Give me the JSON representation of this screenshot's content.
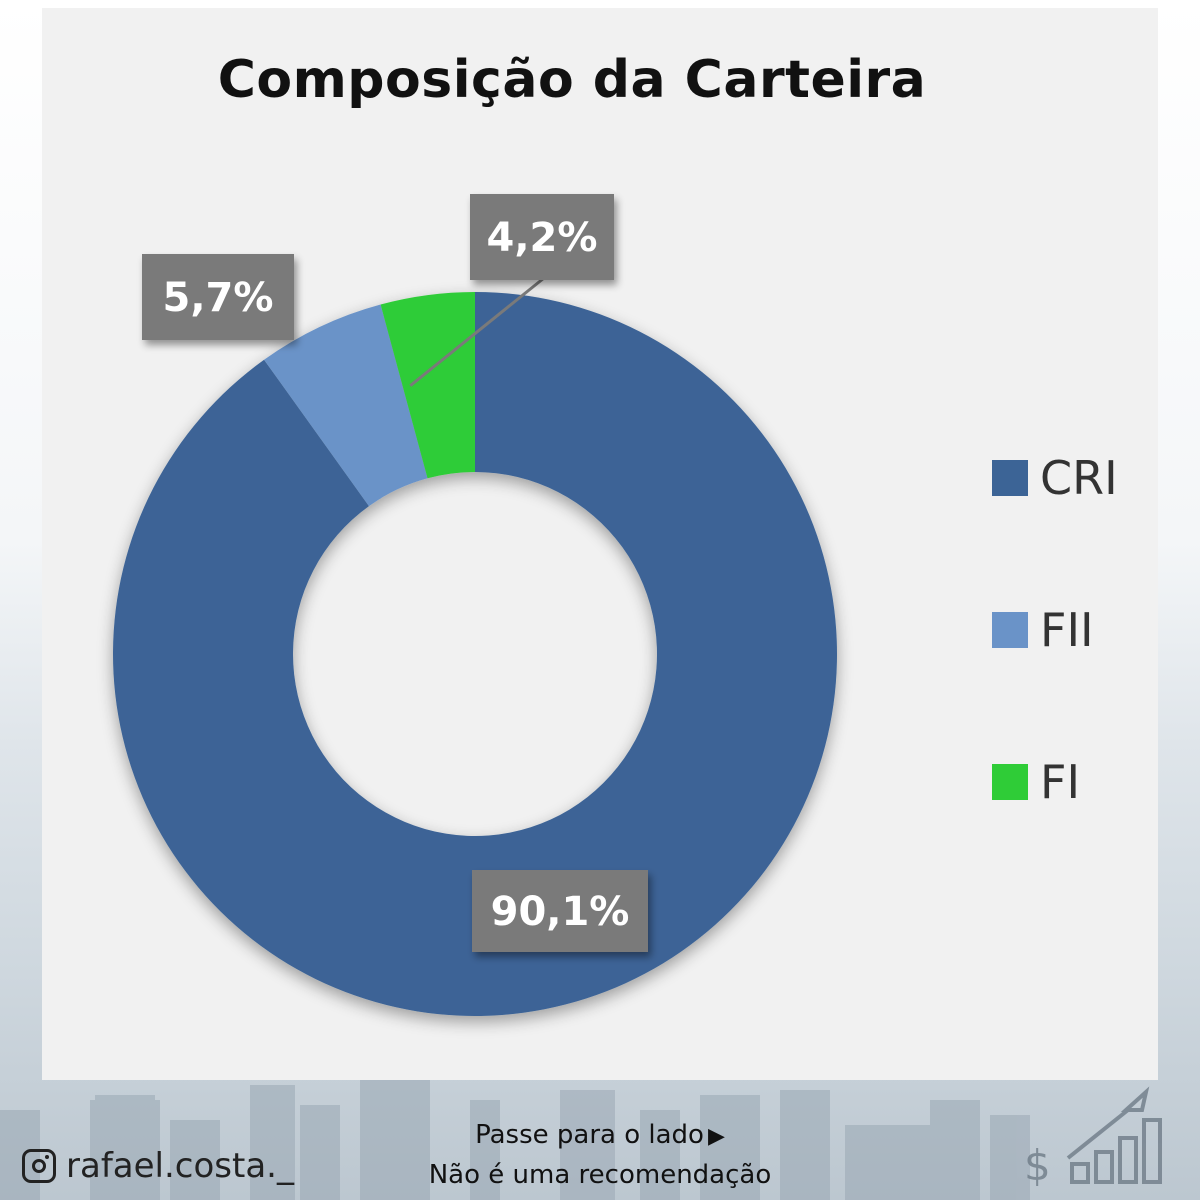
{
  "chart_data": {
    "type": "pie",
    "variant": "donut",
    "title": "Composição da Carteira",
    "categories": [
      "CRI",
      "FII",
      "FI"
    ],
    "values": [
      90.1,
      5.7,
      4.2
    ],
    "data_labels": [
      "90,1%",
      "5,7%",
      "4,2%"
    ],
    "colors": [
      "#3c6496",
      "#6a93c8",
      "#2fcc37"
    ],
    "label_box_color": "#7a7a7a",
    "legend_position": "right"
  },
  "footer": {
    "swipe_text": "Passe para o lado",
    "swipe_icon": "triangle-right-icon",
    "disclaimer": "Não é uma recomendação",
    "handle": "rafael.costa._",
    "handle_icon": "instagram-icon"
  }
}
